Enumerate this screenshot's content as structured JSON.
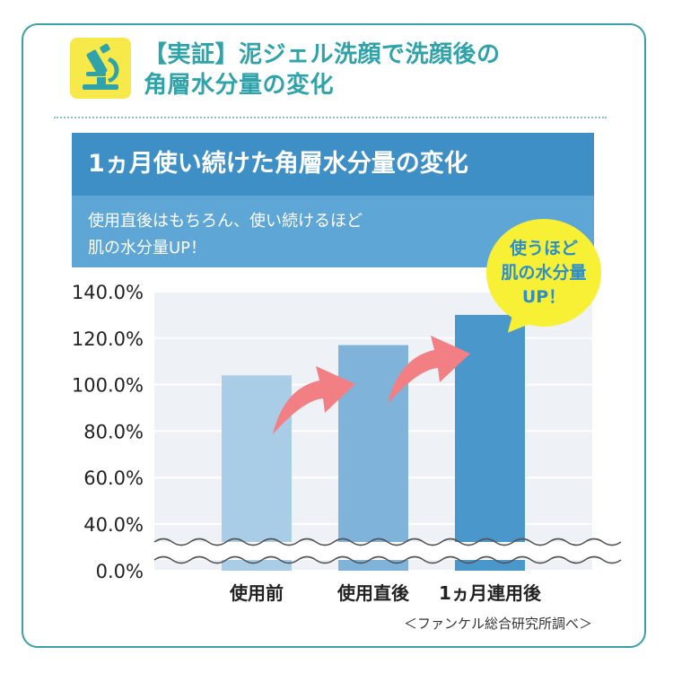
{
  "heading": {
    "line1": "【実証】泥ジェル洗顔で洗顔後の",
    "line2": "角層水分量の変化"
  },
  "banner": {
    "title": "1ヵ月使い続けた角層水分量の変化",
    "subtitle_line1": "使用直後はもちろん、使い続けるほど",
    "subtitle_line2": "肌の水分量UP！"
  },
  "bubble": {
    "line1": "使うほど",
    "line2": "肌の水分量",
    "line3": "UP！"
  },
  "source": "＜ファンケル総合研究所調べ＞",
  "colors": {
    "card_border": "#3aa0a6",
    "heading": "#2fa3a9",
    "banner_dark": "#3d8fc6",
    "banner_light": "#5ea6d6",
    "bubble": "#f8f035",
    "arrow": "#f27f84"
  },
  "icon": "microscope-icon",
  "chart_data": {
    "type": "bar",
    "categories": [
      "使用前",
      "使用直後",
      "1ヵ月連用後"
    ],
    "values": [
      104.0,
      117.0,
      130.0
    ],
    "bar_colors": [
      "#a9cde6",
      "#7fb3da",
      "#4a97cc"
    ],
    "yticks": [
      "0.0%",
      "40.0%",
      "60.0%",
      "80.0%",
      "100.0%",
      "120.0%",
      "140.0%"
    ],
    "ytick_values": [
      0,
      40,
      60,
      80,
      100,
      120,
      140
    ],
    "ylim": [
      0,
      140
    ],
    "axis_break": "between 0% and 40%",
    "grid": true,
    "title": "",
    "xlabel": "",
    "ylabel": ""
  }
}
